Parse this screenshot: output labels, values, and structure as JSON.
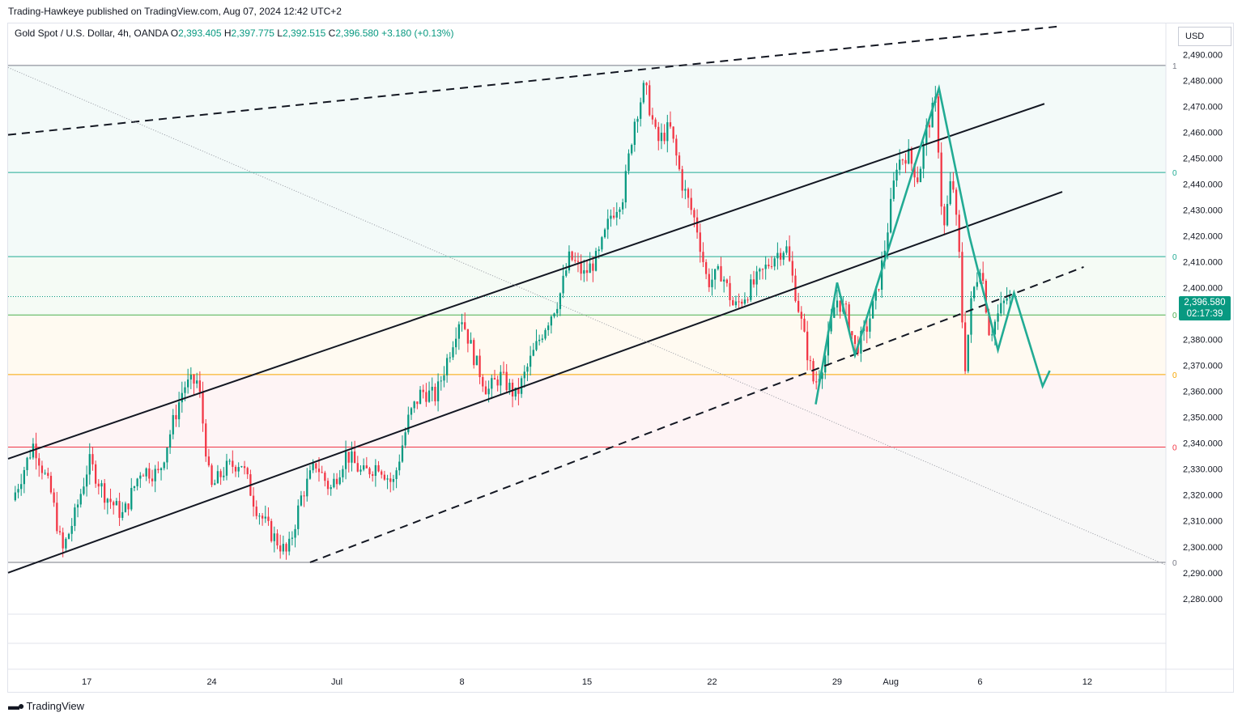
{
  "header": {
    "published": "Trading-Hawkeye published on TradingView.com, Aug 07, 2024 12:42 UTC+2"
  },
  "symbol": {
    "name": "Gold Spot / U.S. Dollar, 4h, OANDA",
    "open_label": "O",
    "open": "2,393.405",
    "high_label": "H",
    "high": "2,397.775",
    "low_label": "L",
    "low": "2,392.515",
    "close_label": "C",
    "close": "2,396.580",
    "change": "+3.180 (+0.13%)"
  },
  "currency": "USD",
  "last_price": {
    "value": "2,396.580",
    "countdown": "02:17:39"
  },
  "footer": {
    "brand": "TradingView"
  },
  "colors": {
    "up": "#089981",
    "down": "#f23645",
    "pattern": "#22ab94",
    "trend": "#131722"
  },
  "chart_data": {
    "type": "candlestick",
    "title": "",
    "xlabel": "",
    "ylabel": "",
    "ylim": [
      2274,
      2502
    ],
    "y_ticks": [
      2490,
      2480,
      2470,
      2460,
      2450,
      2440,
      2430,
      2420,
      2410,
      2400,
      2390,
      2380,
      2370,
      2360,
      2350,
      2340,
      2330,
      2320,
      2310,
      2300,
      2290,
      2280
    ],
    "y_tick_labels": [
      "2,490.000",
      "2,480.000",
      "2,470.000",
      "2,460.000",
      "2,450.000",
      "2,440.000",
      "2,430.000",
      "2,420.000",
      "2,410.000",
      "2,400.000",
      "2,390.000",
      "2,380.000",
      "2,370.000",
      "2,360.000",
      "2,350.000",
      "2,340.000",
      "2,330.000",
      "2,320.000",
      "2,310.000",
      "2,300.000",
      "2,290.000",
      "2,280.000"
    ],
    "x_ticks": [
      "17",
      "24",
      "Jul",
      "8",
      "15",
      "22",
      "29",
      "Aug",
      "6",
      "12"
    ],
    "x_tick_days": [
      17,
      24,
      31,
      38,
      45,
      52,
      59,
      62,
      67,
      73
    ],
    "x_days_range": [
      12.6,
      77.4
    ],
    "fib_levels": [
      {
        "price": 2485.8,
        "label": "1",
        "color": "#787b86"
      },
      {
        "price": 2444.5,
        "label": "0",
        "color": "#22ab94"
      },
      {
        "price": 2412.0,
        "label": "0",
        "color": "#22ab94"
      },
      {
        "price": 2389.5,
        "label": "0",
        "color": "#4caf50"
      },
      {
        "price": 2366.5,
        "label": "0",
        "color": "#f7a600"
      },
      {
        "price": 2338.5,
        "label": "0",
        "color": "#f23645"
      },
      {
        "price": 2294.0,
        "label": "0",
        "color": "#787b86"
      }
    ],
    "candles_anchors": [
      [
        13,
        2318
      ],
      [
        14.2,
        2340
      ],
      [
        15.2,
        2320
      ],
      [
        15.8,
        2298
      ],
      [
        16.5,
        2312
      ],
      [
        17.3,
        2333
      ],
      [
        18.2,
        2320
      ],
      [
        19.2,
        2312
      ],
      [
        20.2,
        2330
      ],
      [
        21.2,
        2328
      ],
      [
        22,
        2348
      ],
      [
        22.6,
        2362
      ],
      [
        23.4,
        2364
      ],
      [
        24.1,
        2322
      ],
      [
        24.9,
        2330
      ],
      [
        25.8,
        2333
      ],
      [
        26.6,
        2316
      ],
      [
        27.4,
        2306
      ],
      [
        28.4,
        2297
      ],
      [
        29.2,
        2320
      ],
      [
        30,
        2332
      ],
      [
        30.8,
        2322
      ],
      [
        31.7,
        2336
      ],
      [
        32.6,
        2328
      ],
      [
        33.5,
        2332
      ],
      [
        34.3,
        2324
      ],
      [
        35.2,
        2350
      ],
      [
        35.9,
        2360
      ],
      [
        36.7,
        2358
      ],
      [
        37.5,
        2376
      ],
      [
        38.1,
        2390
      ],
      [
        38.9,
        2372
      ],
      [
        39.6,
        2360
      ],
      [
        40.3,
        2366
      ],
      [
        41.2,
        2358
      ],
      [
        42,
        2372
      ],
      [
        42.8,
        2385
      ],
      [
        43.6,
        2396
      ],
      [
        44.2,
        2412
      ],
      [
        45,
        2405
      ],
      [
        45.8,
        2412
      ],
      [
        46.5,
        2428
      ],
      [
        47.2,
        2436
      ],
      [
        47.8,
        2464
      ],
      [
        48.4,
        2478
      ],
      [
        49.1,
        2456
      ],
      [
        49.8,
        2462
      ],
      [
        50.5,
        2440
      ],
      [
        51.3,
        2424
      ],
      [
        51.9,
        2402
      ],
      [
        52.7,
        2406
      ],
      [
        53.4,
        2392
      ],
      [
        54.1,
        2398
      ],
      [
        54.8,
        2404
      ],
      [
        55.6,
        2412
      ],
      [
        56.3,
        2416
      ],
      [
        56.9,
        2396
      ],
      [
        57.4,
        2378
      ],
      [
        57.9,
        2362
      ],
      [
        58.5,
        2374
      ],
      [
        59.1,
        2396
      ],
      [
        59.7,
        2390
      ],
      [
        60.2,
        2376
      ],
      [
        60.8,
        2384
      ],
      [
        61.4,
        2398
      ],
      [
        61.9,
        2418
      ],
      [
        62.5,
        2448
      ],
      [
        63.1,
        2452
      ],
      [
        63.7,
        2442
      ],
      [
        64.2,
        2462
      ],
      [
        64.7,
        2472
      ],
      [
        65.1,
        2420
      ],
      [
        65.6,
        2444
      ],
      [
        66,
        2412
      ],
      [
        66.3,
        2368
      ],
      [
        66.7,
        2396
      ],
      [
        67.2,
        2410
      ],
      [
        67.7,
        2382
      ],
      [
        68.2,
        2390
      ],
      [
        68.7,
        2396.6
      ]
    ],
    "series": [
      {
        "name": "",
        "type": "trendline",
        "style": "solid",
        "points": [
          [
            12.6,
            2334
          ],
          [
            70.6,
            2471
          ]
        ]
      },
      {
        "name": "",
        "type": "trendline",
        "style": "solid",
        "points": [
          [
            12.6,
            2290
          ],
          [
            71.6,
            2437
          ]
        ]
      },
      {
        "name": "",
        "type": "trendline",
        "style": "dashed",
        "points": [
          [
            12.6,
            2459
          ],
          [
            71.6,
            2501
          ]
        ]
      },
      {
        "name": "",
        "type": "trendline",
        "style": "dashed",
        "points": [
          [
            29.5,
            2294
          ],
          [
            72.8,
            2408
          ]
        ]
      },
      {
        "name": "",
        "type": "trendline",
        "style": "dotted",
        "points": [
          [
            12.6,
            2485
          ],
          [
            77.4,
            2293
          ]
        ]
      },
      {
        "name": "",
        "type": "pattern",
        "style": "solid",
        "points": [
          [
            57.8,
            2355
          ],
          [
            59.0,
            2402
          ],
          [
            60.0,
            2374
          ],
          [
            64.7,
            2477
          ],
          [
            66.4,
            2420
          ],
          [
            68.0,
            2376
          ],
          [
            68.9,
            2398
          ],
          [
            70.5,
            2362
          ],
          [
            70.9,
            2368
          ]
        ]
      }
    ]
  }
}
